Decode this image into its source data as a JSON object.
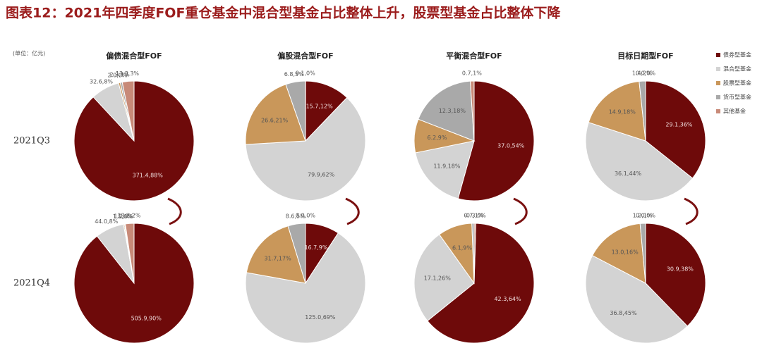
{
  "title": "图表12：2021年四季度FOF重仓基金中混合型基金占比整体上升，股票型基金占比整体下降",
  "unit": "(单位：亿元)",
  "columns": [
    "偏债混合型FOF",
    "偏股混合型FOF",
    "平衡混合型FOF",
    "目标日期型FOF"
  ],
  "rows": [
    "2021Q3",
    "2021Q4"
  ],
  "legend": {
    "categories": [
      "债券型基金",
      "混合型基金",
      "股票型基金",
      "货币型基金",
      "其他基金"
    ],
    "colors": [
      "#6e0a0a",
      "#d3d3d3",
      "#c9975a",
      "#a9a9a9",
      "#c88a78"
    ]
  },
  "chart_data": [
    {
      "type": "pie",
      "values": [
        371.4,
        32.6,
        2.0,
        2.3,
        13.3
      ],
      "value_labels": [
        "371.4,88%",
        "32.6,8%",
        "2.0,0%",
        "2.3,1%",
        "13.3,3%"
      ]
    },
    {
      "type": "pie",
      "values": [
        15.7,
        79.9,
        26.6,
        6.8,
        0.1
      ],
      "value_labels": [
        "15.7,12%",
        "79.9,62%",
        "26.6,21%",
        "6.8,5%",
        "0.1,0%"
      ]
    },
    {
      "type": "pie",
      "values": [
        37.0,
        11.9,
        6.2,
        12.3,
        0.7
      ],
      "value_labels": [
        "37.0,54%",
        "11.9,18%",
        "6.2,9%",
        "12.3,18%",
        "0.7,1%"
      ]
    },
    {
      "type": "pie",
      "values": [
        29.1,
        36.1,
        14.9,
        1.4,
        0.0
      ],
      "value_labels": [
        "29.1,36%",
        "36.1,44%",
        "14.9,18%",
        "1.4,2%",
        "0.0,0%"
      ]
    },
    {
      "type": "pie",
      "values": [
        505.9,
        44.0,
        1.5,
        1.2,
        13.2
      ],
      "value_labels": [
        "505.9,90%",
        "44.0,8%",
        "1.5,0%",
        "1.2,0%",
        "13.2,2%"
      ]
    },
    {
      "type": "pie",
      "values": [
        16.7,
        125.0,
        31.7,
        8.6,
        0.0
      ],
      "value_labels": [
        "16.7,9%",
        "125.0,69%",
        "31.7,17%",
        "8.6,5%",
        "0.0,0%"
      ]
    },
    {
      "type": "pie",
      "values": [
        42.3,
        17.1,
        6.1,
        0.7,
        -0.3
      ],
      "value_labels": [
        "42.3,64%",
        "17.1,26%",
        "6.1,9%",
        "0.7,1%",
        "-0.3,0%"
      ]
    },
    {
      "type": "pie",
      "values": [
        30.9,
        36.8,
        13.0,
        1.2,
        0.0
      ],
      "value_labels": [
        "30.9,38%",
        "36.8,45%",
        "13.0,16%",
        "1.2,1%",
        "0.0,0%"
      ]
    }
  ]
}
